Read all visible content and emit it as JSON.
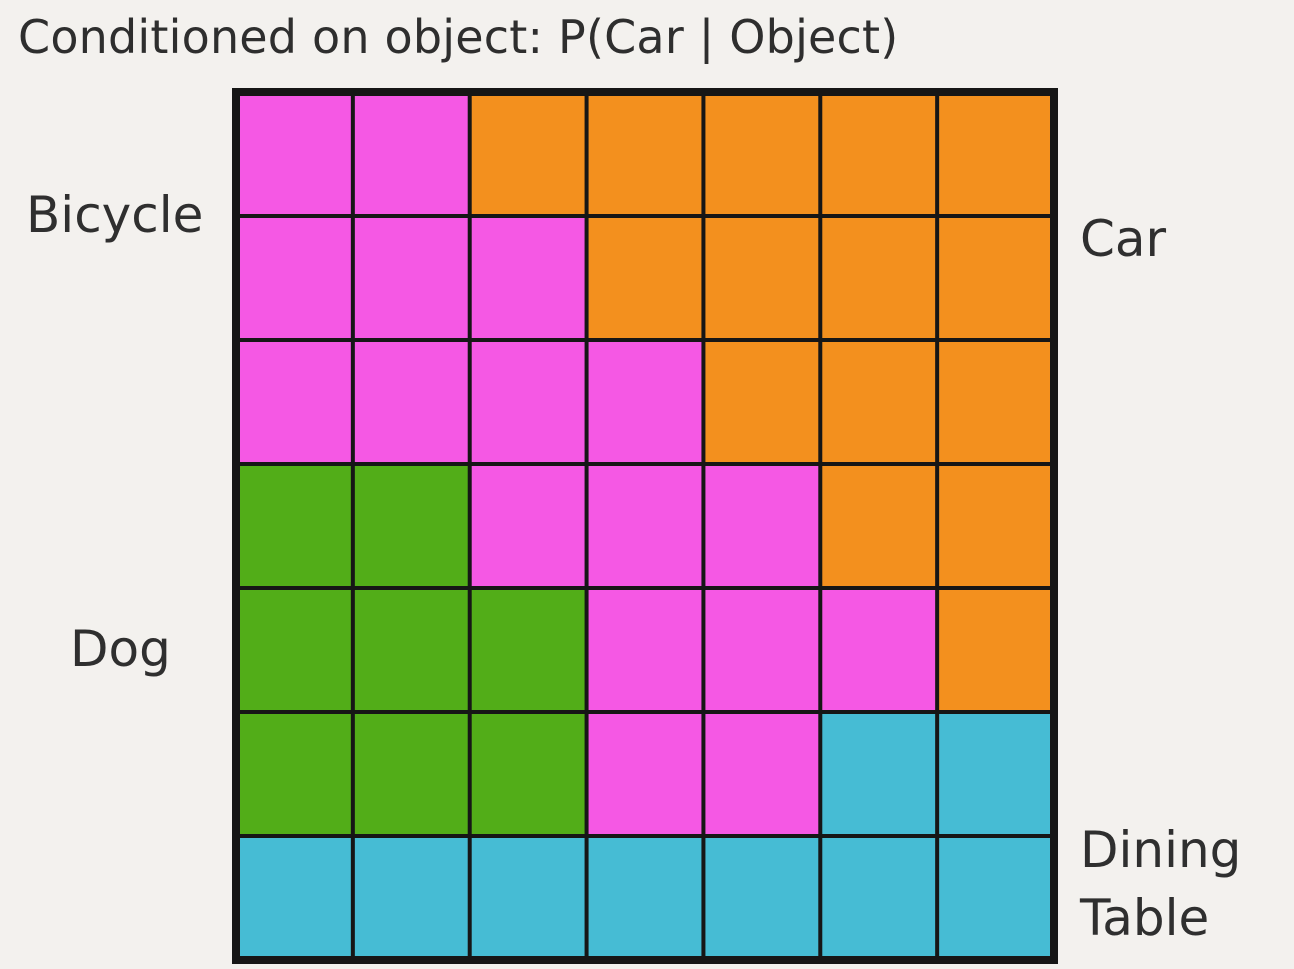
{
  "title": "Conditioned on object: P(Car | Object)",
  "labels": {
    "bicycle": "Bicycle",
    "car": "Car",
    "dog": "Dog",
    "dining_line1": "Dining",
    "dining_line2": "Table"
  },
  "grid": {
    "rows": 7,
    "cols": 7,
    "colors": {
      "B": "#f558e4",
      "C": "#f3901e",
      "D": "#52ad18",
      "T": "#46bcd4"
    },
    "cells": [
      [
        "B",
        "B",
        "C",
        "C",
        "C",
        "C",
        "C"
      ],
      [
        "B",
        "B",
        "B",
        "C",
        "C",
        "C",
        "C"
      ],
      [
        "B",
        "B",
        "B",
        "B",
        "C",
        "C",
        "C"
      ],
      [
        "D",
        "D",
        "B",
        "B",
        "B",
        "C",
        "C"
      ],
      [
        "D",
        "D",
        "D",
        "B",
        "B",
        "B",
        "C"
      ],
      [
        "D",
        "D",
        "D",
        "B",
        "B",
        "T",
        "T"
      ],
      [
        "T",
        "T",
        "T",
        "T",
        "T",
        "T",
        "T"
      ]
    ]
  }
}
